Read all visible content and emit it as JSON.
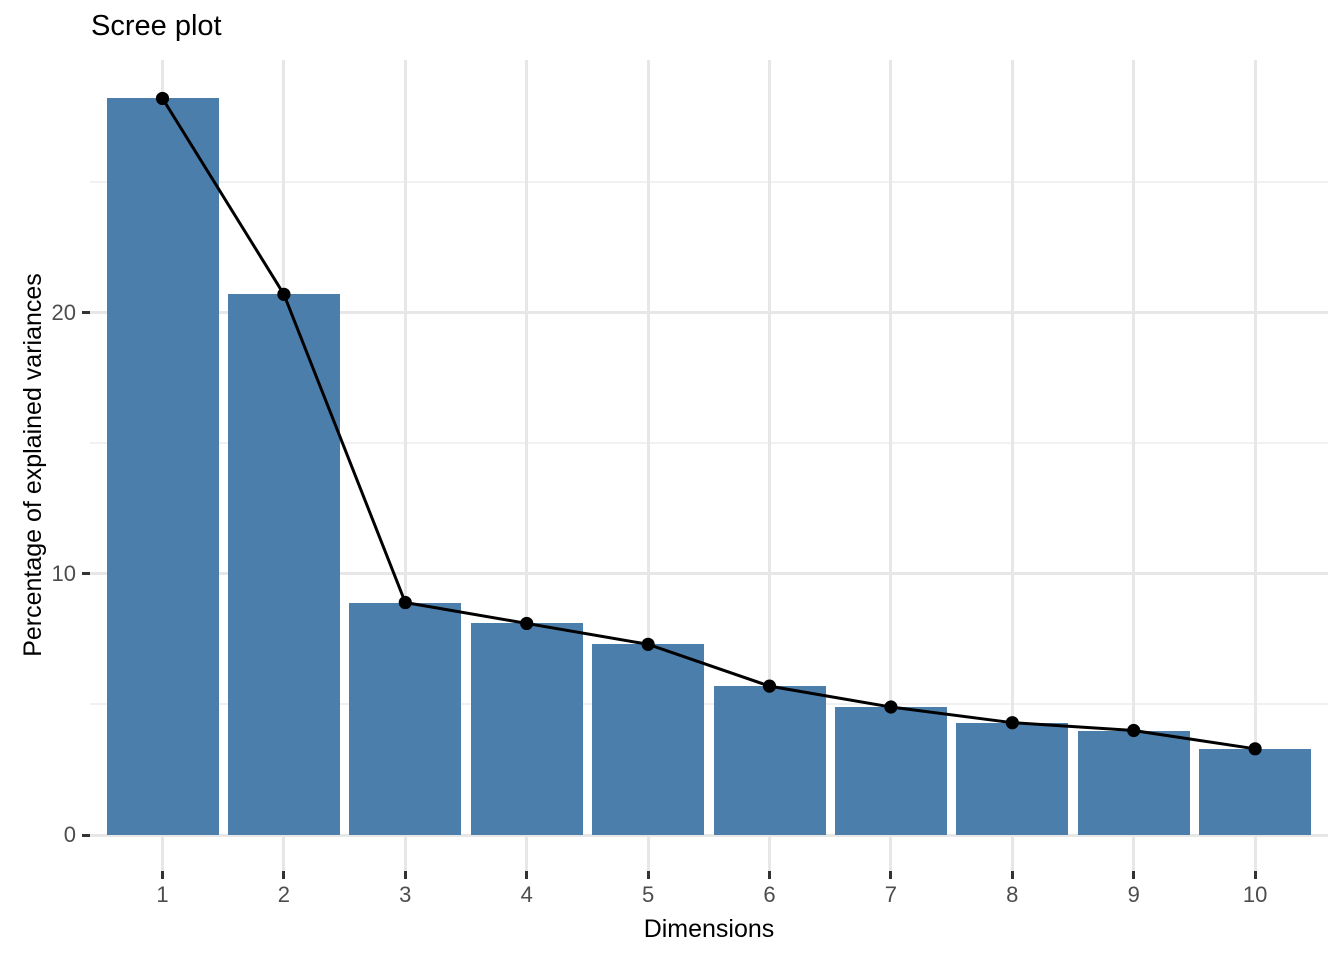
{
  "chart_data": {
    "type": "bar",
    "overlay": "line-with-points",
    "title": "Scree plot",
    "xlabel": "Dimensions",
    "ylabel": "Percentage of explained variances",
    "categories": [
      "1",
      "2",
      "3",
      "4",
      "5",
      "6",
      "7",
      "8",
      "9",
      "10"
    ],
    "values": [
      28.2,
      20.7,
      8.9,
      8.1,
      7.3,
      5.7,
      4.9,
      4.3,
      4.0,
      3.3
    ],
    "series_name": "Percentage of explained variances",
    "ylim": [
      -1.4,
      29.7
    ],
    "yticks_major": [
      0,
      10,
      20
    ],
    "yticks_minor": [
      5,
      15,
      25
    ],
    "grid": "on",
    "legend": "none",
    "colors": {
      "bar_fill": "#4C7EAC",
      "line": "#000000",
      "point": "#000000",
      "grid_major": "#E7E7E7",
      "grid_minor": "#F1F1F1",
      "tick_mark": "#333333",
      "tick_label": "#4D4D4D",
      "axis_title": "#000000",
      "title": "#000000",
      "background": "#FFFFFF"
    }
  }
}
